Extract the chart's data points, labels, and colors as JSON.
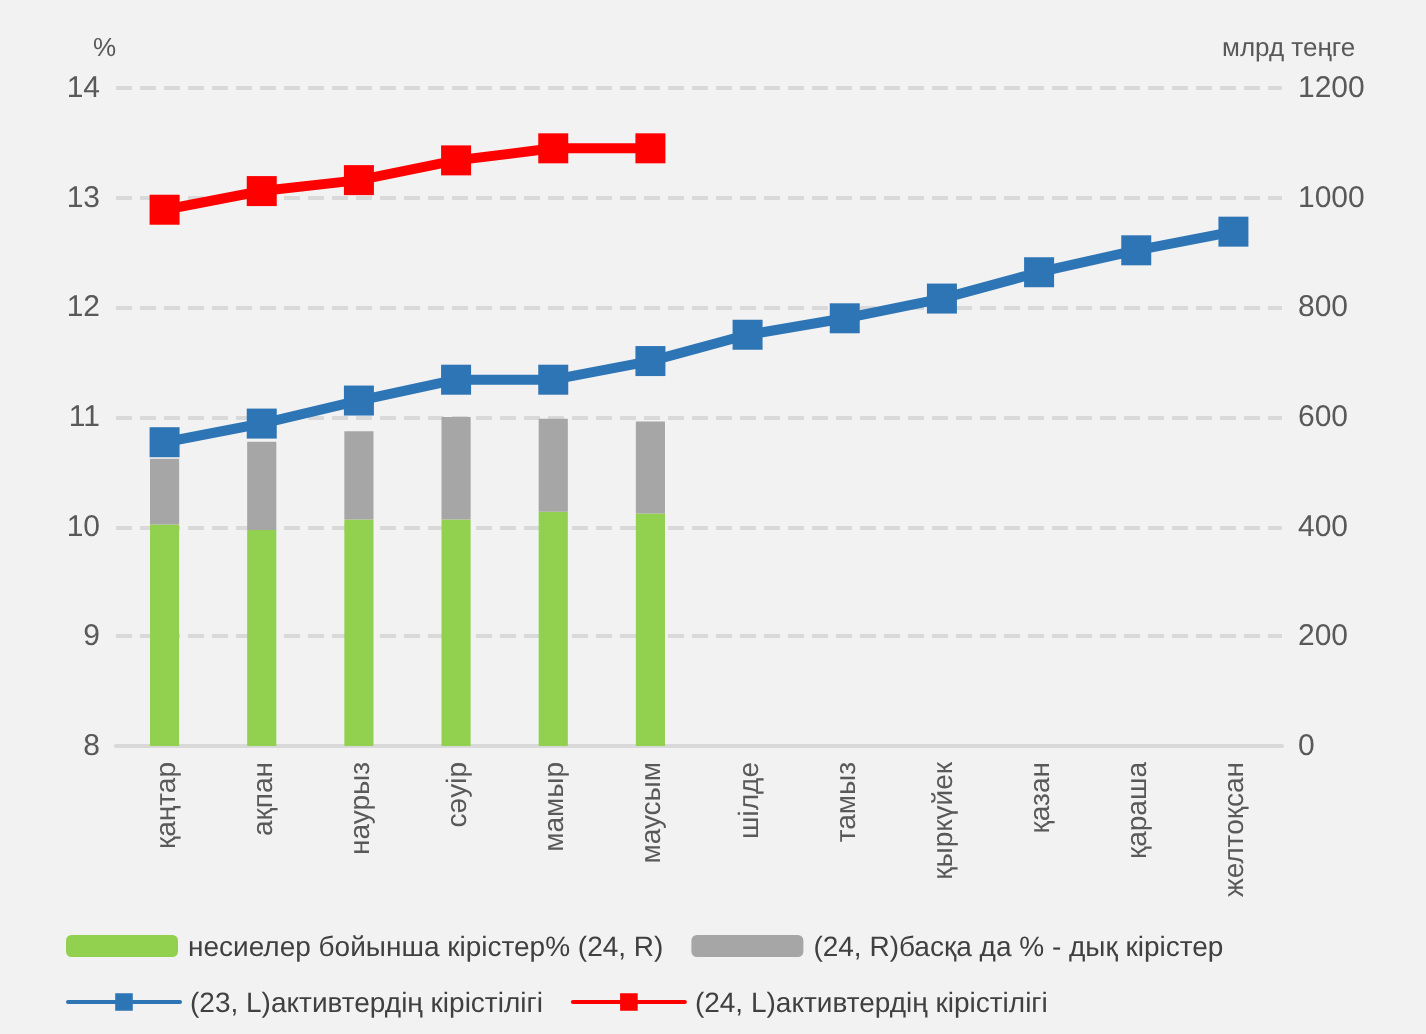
{
  "chart_data": {
    "type": "bar",
    "stacked": true,
    "categories": [
      "қаңтар",
      "ақпан",
      "наурыз",
      "сәуір",
      "мамыр",
      "маусым",
      "шілде",
      "тамыз",
      "қыркүйек",
      "қазан",
      "қараша",
      "желтоқсан"
    ],
    "ylabel": "%",
    "y2label": "млрд теңге",
    "ylim": [
      8,
      14
    ],
    "yticks": [
      8,
      9,
      10,
      11,
      12,
      13,
      14
    ],
    "y2lim": [
      0,
      1200
    ],
    "y2ticks": [
      0,
      200,
      400,
      600,
      800,
      1000,
      1200
    ],
    "grid": "y",
    "legend": "bottom",
    "marker": "square",
    "line_style": "solid",
    "series": [
      {
        "name": "несиелер бойынша кірістер% (24, R)",
        "axis": "y2",
        "color": "#92d050",
        "values": [
          404,
          394,
          413,
          413,
          427,
          424,
          null,
          null,
          null,
          null,
          null,
          null
        ]
      },
      {
        "name": "(24, R)басқа да % - дық кірістер",
        "axis": "y2",
        "color": "#a6a6a6",
        "values": [
          120,
          161,
          161,
          187,
          170,
          168,
          null,
          null,
          null,
          null,
          null,
          null
        ]
      },
      {
        "name": "(23, L)активтердің кірістілігі",
        "type": "line",
        "axis": "y",
        "color": "#2e75b6",
        "values": [
          10.77,
          10.94,
          11.15,
          11.34,
          11.34,
          11.51,
          11.75,
          11.9,
          12.08,
          12.32,
          12.52,
          12.69
        ]
      },
      {
        "name": "(24, L)активтердің кірістілігі",
        "type": "line",
        "axis": "y",
        "color": "#ff0000",
        "values": [
          12.89,
          13.06,
          13.16,
          13.34,
          13.45,
          13.45,
          null,
          null,
          null,
          null,
          null,
          null
        ]
      }
    ]
  }
}
